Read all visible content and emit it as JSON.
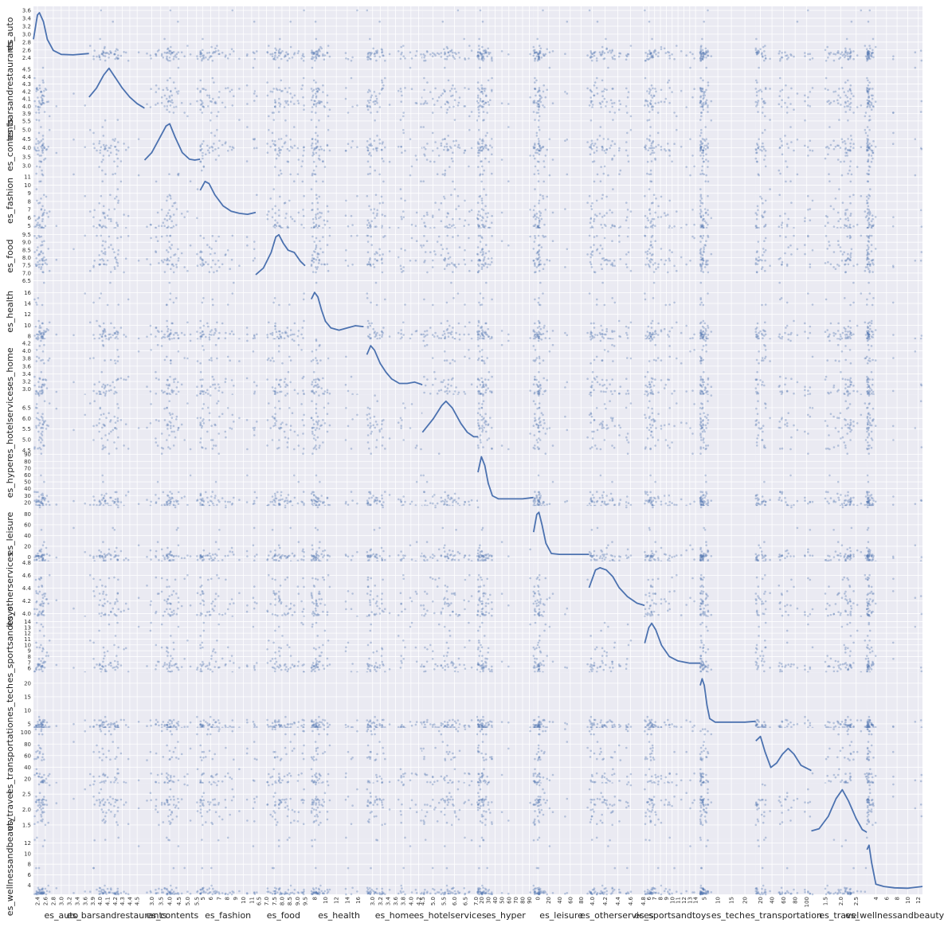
{
  "chart_data": {
    "type": "scatter-matrix",
    "variables": [
      {
        "name": "es_auto",
        "range": [
          2.3,
          3.7
        ],
        "xticks": [
          "2.4",
          "2.6",
          "2.8",
          "3.0",
          "3.2",
          "3.4",
          "3.6"
        ],
        "yticks": [
          "2.4",
          "2.6",
          "2.8",
          "3.0",
          "3.2",
          "3.4",
          "3.6"
        ],
        "density": [
          [
            2.3,
            0.4
          ],
          [
            2.4,
            0.95
          ],
          [
            2.45,
            1.0
          ],
          [
            2.55,
            0.8
          ],
          [
            2.65,
            0.4
          ],
          [
            2.8,
            0.15
          ],
          [
            3.0,
            0.06
          ],
          [
            3.3,
            0.05
          ],
          [
            3.7,
            0.08
          ]
        ]
      },
      {
        "name": "es_barsandrestaurants",
        "range": [
          3.85,
          4.6
        ],
        "xticks": [
          "3.9",
          "4.0",
          "4.1",
          "4.2",
          "4.3",
          "4.4",
          "4.5"
        ],
        "yticks": [
          "3.9",
          "4.0",
          "4.1",
          "4.2",
          "4.3",
          "4.4",
          "4.5"
        ],
        "density": [
          [
            3.85,
            0.35
          ],
          [
            3.95,
            0.55
          ],
          [
            4.05,
            0.85
          ],
          [
            4.12,
            1.0
          ],
          [
            4.2,
            0.8
          ],
          [
            4.3,
            0.55
          ],
          [
            4.4,
            0.35
          ],
          [
            4.5,
            0.2
          ],
          [
            4.6,
            0.1
          ]
        ]
      },
      {
        "name": "es_contents",
        "range": [
          2.6,
          5.7
        ],
        "xticks": [
          "3.0",
          "3.5",
          "4.0",
          "4.5",
          "5.0",
          "5.5"
        ],
        "yticks": [
          "2.5",
          "3.0",
          "3.5",
          "4.0",
          "4.5",
          "5.0",
          "5.5",
          "6.0"
        ],
        "density": [
          [
            2.6,
            0.18
          ],
          [
            3.0,
            0.35
          ],
          [
            3.4,
            0.65
          ],
          [
            3.8,
            0.95
          ],
          [
            4.0,
            1.0
          ],
          [
            4.3,
            0.7
          ],
          [
            4.7,
            0.35
          ],
          [
            5.1,
            0.2
          ],
          [
            5.4,
            0.18
          ],
          [
            5.7,
            0.2
          ]
        ]
      },
      {
        "name": "es_fashion",
        "range": [
          4.7,
          11.5
        ],
        "xticks": [
          "5",
          "6",
          "7",
          "8",
          "9",
          "10",
          "11"
        ],
        "yticks": [
          "5",
          "6",
          "7",
          "8",
          "9",
          "10",
          "11"
        ],
        "density": [
          [
            4.7,
            0.75
          ],
          [
            5.3,
            0.95
          ],
          [
            5.8,
            0.9
          ],
          [
            6.5,
            0.65
          ],
          [
            7.5,
            0.4
          ],
          [
            8.5,
            0.28
          ],
          [
            9.5,
            0.23
          ],
          [
            10.5,
            0.21
          ],
          [
            11.5,
            0.25
          ]
        ]
      },
      {
        "name": "es_food",
        "range": [
          6.3,
          9.9
        ],
        "xticks": [
          "6.5",
          "7.0",
          "7.5",
          "8.0",
          "8.5",
          "9.0",
          "9.5"
        ],
        "yticks": [
          "6.5",
          "7.0",
          "7.5",
          "8.0",
          "8.5",
          "9.0",
          "9.5"
        ],
        "density": [
          [
            6.3,
            0.1
          ],
          [
            6.8,
            0.25
          ],
          [
            7.3,
            0.6
          ],
          [
            7.6,
            0.95
          ],
          [
            7.8,
            1.0
          ],
          [
            8.1,
            0.8
          ],
          [
            8.4,
            0.65
          ],
          [
            8.8,
            0.6
          ],
          [
            9.2,
            0.4
          ],
          [
            9.5,
            0.3
          ]
        ]
      },
      {
        "name": "es_health",
        "range": [
          7.4,
          17.6
        ],
        "xticks": [
          "8",
          "10",
          "12",
          "14",
          "16"
        ],
        "yticks": [
          "8",
          "10",
          "12",
          "14",
          "16"
        ],
        "density": [
          [
            7.4,
            0.8
          ],
          [
            8.0,
            0.95
          ],
          [
            8.6,
            0.85
          ],
          [
            9.3,
            0.55
          ],
          [
            10.0,
            0.3
          ],
          [
            11.0,
            0.15
          ],
          [
            12.5,
            0.1
          ],
          [
            14.0,
            0.15
          ],
          [
            15.5,
            0.2
          ],
          [
            17.0,
            0.18
          ]
        ]
      },
      {
        "name": "es_home",
        "range": [
          2.85,
          4.3
        ],
        "xticks": [
          "3.0",
          "3.2",
          "3.4",
          "3.6",
          "3.8",
          "4.0",
          "4.2"
        ],
        "yticks": [
          "3.0",
          "3.2",
          "3.4",
          "3.6",
          "3.8",
          "4.0",
          "4.2"
        ],
        "density": [
          [
            2.85,
            0.8
          ],
          [
            2.95,
            1.0
          ],
          [
            3.05,
            0.9
          ],
          [
            3.2,
            0.6
          ],
          [
            3.35,
            0.4
          ],
          [
            3.5,
            0.25
          ],
          [
            3.7,
            0.15
          ],
          [
            3.9,
            0.15
          ],
          [
            4.1,
            0.18
          ],
          [
            4.3,
            0.12
          ]
        ]
      },
      {
        "name": "es_hotelservices",
        "range": [
          4.5,
          7.1
        ],
        "xticks": [
          "4.5",
          "5.0",
          "5.5",
          "6.0",
          "6.5",
          "7.0"
        ],
        "yticks": [
          "4.5",
          "5.0",
          "5.5",
          "6.0",
          "6.5"
        ],
        "density": [
          [
            4.5,
            0.3
          ],
          [
            5.0,
            0.6
          ],
          [
            5.4,
            0.9
          ],
          [
            5.6,
            1.0
          ],
          [
            5.9,
            0.85
          ],
          [
            6.3,
            0.5
          ],
          [
            6.6,
            0.3
          ],
          [
            6.9,
            0.2
          ],
          [
            7.1,
            0.2
          ]
        ]
      },
      {
        "name": "es_hyper",
        "range": [
          15,
          96
        ],
        "xticks": [
          "20",
          "30",
          "40",
          "50",
          "60",
          "70",
          "80",
          "90"
        ],
        "yticks": [
          "20",
          "30",
          "40",
          "50",
          "60",
          "70",
          "80",
          "90"
        ],
        "density": [
          [
            15,
            0.65
          ],
          [
            20,
            1.0
          ],
          [
            25,
            0.8
          ],
          [
            30,
            0.4
          ],
          [
            36,
            0.12
          ],
          [
            45,
            0.05
          ],
          [
            60,
            0.05
          ],
          [
            80,
            0.05
          ],
          [
            96,
            0.08
          ]
        ]
      },
      {
        "name": "es_leisure",
        "range": [
          -8,
          95
        ],
        "xticks": [
          "0",
          "20",
          "40",
          "60",
          "80"
        ],
        "yticks": [
          "0",
          "20",
          "40",
          "60",
          "80"
        ],
        "density": [
          [
            -8,
            0.55
          ],
          [
            -2,
            0.95
          ],
          [
            2,
            1.0
          ],
          [
            8,
            0.7
          ],
          [
            15,
            0.3
          ],
          [
            25,
            0.07
          ],
          [
            40,
            0.05
          ],
          [
            70,
            0.05
          ],
          [
            95,
            0.05
          ]
        ]
      },
      {
        "name": "es_otherservices",
        "range": [
          3.95,
          4.82
        ],
        "xticks": [
          "4.0",
          "4.2",
          "4.4",
          "4.6",
          "4.8"
        ],
        "yticks": [
          "4.0",
          "4.2",
          "4.4",
          "4.6",
          "4.8"
        ],
        "density": [
          [
            3.95,
            0.55
          ],
          [
            4.05,
            0.95
          ],
          [
            4.12,
            1.0
          ],
          [
            4.22,
            0.95
          ],
          [
            4.32,
            0.8
          ],
          [
            4.42,
            0.55
          ],
          [
            4.55,
            0.35
          ],
          [
            4.7,
            0.2
          ],
          [
            4.82,
            0.15
          ]
        ]
      },
      {
        "name": "es_sportsandtoys",
        "range": [
          5.3,
          14.8
        ],
        "xticks": [
          "6",
          "7",
          "8",
          "9",
          "10",
          "11",
          "12",
          "13",
          "14"
        ],
        "yticks": [
          "6",
          "7",
          "8",
          "9",
          "10",
          "11",
          "12",
          "13",
          "14"
        ],
        "density": [
          [
            5.3,
            0.55
          ],
          [
            6.0,
            0.9
          ],
          [
            6.5,
            1.0
          ],
          [
            7.2,
            0.85
          ],
          [
            8.2,
            0.5
          ],
          [
            9.5,
            0.25
          ],
          [
            11,
            0.15
          ],
          [
            13,
            0.1
          ],
          [
            14.8,
            0.1
          ]
        ]
      },
      {
        "name": "es_tech",
        "range": [
          3.5,
          24
        ],
        "xticks": [
          "5",
          "10",
          "15",
          "20"
        ],
        "yticks": [
          "5",
          "10",
          "15",
          "20"
        ],
        "density": [
          [
            3.5,
            0.85
          ],
          [
            4.2,
            1.0
          ],
          [
            5.0,
            0.85
          ],
          [
            6.0,
            0.4
          ],
          [
            7.0,
            0.1
          ],
          [
            9,
            0.02
          ],
          [
            15,
            0.02
          ],
          [
            20,
            0.02
          ],
          [
            24,
            0.04
          ]
        ]
      },
      {
        "name": "es_transportation",
        "range": [
          12,
          108
        ],
        "xticks": [
          "20",
          "40",
          "60",
          "80",
          "100"
        ],
        "yticks": [
          "20",
          "40",
          "60",
          "80",
          "100"
        ],
        "density": [
          [
            12,
            0.85
          ],
          [
            20,
            0.95
          ],
          [
            28,
            0.6
          ],
          [
            38,
            0.25
          ],
          [
            48,
            0.35
          ],
          [
            58,
            0.55
          ],
          [
            68,
            0.68
          ],
          [
            78,
            0.55
          ],
          [
            90,
            0.3
          ],
          [
            108,
            0.18
          ]
        ]
      },
      {
        "name": "es_travel",
        "range": [
          1.05,
          2.85
        ],
        "xticks": [
          "1.0",
          "1.5",
          "2.0",
          "2.5"
        ],
        "yticks": [
          "1.0",
          "1.5",
          "2.0",
          "2.5"
        ],
        "density": [
          [
            1.05,
            0.07
          ],
          [
            1.3,
            0.12
          ],
          [
            1.6,
            0.4
          ],
          [
            1.85,
            0.8
          ],
          [
            2.05,
            1.0
          ],
          [
            2.25,
            0.75
          ],
          [
            2.5,
            0.35
          ],
          [
            2.7,
            0.1
          ],
          [
            2.85,
            0.04
          ]
        ]
      },
      {
        "name": "es_wellnessandbeauty",
        "range": [
          2.3,
          12.8
        ],
        "xticks": [
          "4",
          "6",
          "8",
          "10",
          "12"
        ],
        "yticks": [
          "4",
          "6",
          "8",
          "10",
          "12"
        ],
        "density": [
          [
            2.3,
            0.9
          ],
          [
            2.7,
            1.0
          ],
          [
            3.2,
            0.6
          ],
          [
            4.0,
            0.12
          ],
          [
            5.5,
            0.07
          ],
          [
            7.5,
            0.04
          ],
          [
            10,
            0.03
          ],
          [
            12.8,
            0.07
          ]
        ]
      }
    ],
    "colors": {
      "background": "#eaeaf2",
      "grid": "#ffffff",
      "points": "#4c72b0",
      "line": "#4c72b0"
    },
    "diagonal": "kde",
    "offdiagonal": "scatter",
    "grid": true
  }
}
